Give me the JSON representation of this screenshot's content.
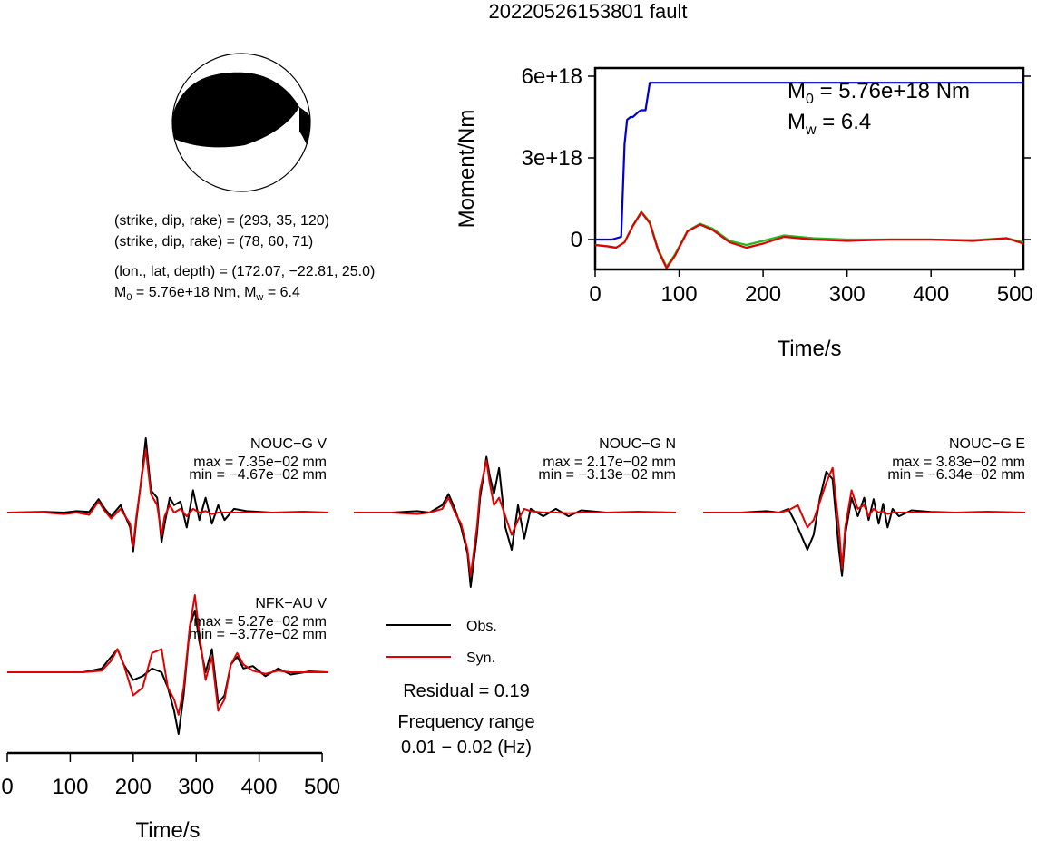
{
  "title": "20220526153801 fault",
  "beachball": {
    "plane1": "(strike, dip, rake) = (293, 35, 120)",
    "plane2": "(strike, dip, rake) = (78, 60, 71)",
    "location": "(lon., lat, depth) = (172.07, −22.81, 25.0)",
    "moment_prefix": "M",
    "moment_sub": "0",
    "moment_value": " = 5.76e+18 Nm, M",
    "mw_sub": "w",
    "mw_value": " = 6.4"
  },
  "moment_panel": {
    "m0_label": "M",
    "m0_sub": "0",
    "m0_value": " = 5.76e+18 Nm",
    "mw_label": "M",
    "mw_sub": "w",
    "mw_value": " = 6.4"
  },
  "legend": {
    "obs": "Obs.",
    "syn": "Syn.",
    "residual": "Residual = 0.19",
    "freq_title": "Frequency range",
    "freq_value": "0.01 − 0.02 (Hz)"
  },
  "colors": {
    "obs": "#000000",
    "syn": "#e00000",
    "moment": "#0000cc",
    "green": "#22bb22"
  },
  "chart_data": [
    {
      "type": "line",
      "title": "",
      "xlabel": "Time/s",
      "ylabel": "Moment/Nm",
      "xlim": [
        0,
        510
      ],
      "ylim": [
        -1.1e+18,
        6.3e+18
      ],
      "xticks": [
        0,
        100,
        200,
        300,
        400,
        500
      ],
      "yticks": [
        0,
        3e+18,
        6e+18
      ],
      "ytick_labels": [
        "0",
        "3e+18",
        "6e+18"
      ],
      "series": [
        {
          "role": "cumulative_moment",
          "x": [
            0,
            20,
            31,
            35,
            38,
            42,
            45,
            52,
            55,
            60,
            65,
            510
          ],
          "y": [
            0,
            0,
            1e+17,
            3.5e+18,
            4.4e+18,
            4.5e+18,
            4.5e+18,
            4.7e+18,
            4.75e+18,
            4.75e+18,
            5.76e+18,
            5.76e+18
          ]
        },
        {
          "role": "moment_rate_syn",
          "x": [
            0,
            15,
            25,
            35,
            45,
            55,
            65,
            75,
            85,
            95,
            110,
            125,
            140,
            160,
            180,
            200,
            225,
            260,
            300,
            350,
            400,
            450,
            490,
            510
          ],
          "y": [
            -2e+17,
            -2.5e+17,
            -3e+17,
            -1e+17,
            5e+17,
            1e+18,
            6e+17,
            -4e+17,
            -1.05e+18,
            -6e+17,
            3e+17,
            5.5e+17,
            3.5e+17,
            -1e+17,
            -3e+17,
            -1.5e+17,
            1e+17,
            0.0,
            -5e+16,
            0.0,
            0.0,
            -5e+16,
            5e+16,
            -1.5e+17
          ]
        },
        {
          "role": "moment_rate_green",
          "x": [
            0,
            15,
            25,
            35,
            45,
            55,
            65,
            75,
            85,
            95,
            110,
            125,
            140,
            160,
            180,
            200,
            225,
            260,
            300,
            350,
            400,
            450,
            490,
            510
          ],
          "y": [
            -2e+17,
            -2.5e+17,
            -3e+17,
            -1e+17,
            5.2e+17,
            1.02e+18,
            6.5e+17,
            -3.5e+17,
            -1e+18,
            -5.5e+17,
            3.2e+17,
            5.8e+17,
            4e+17,
            -5e+16,
            -2e+17,
            -5e+16,
            1.5e+17,
            5e+16,
            0.0,
            0.0,
            0.0,
            -2e+16,
            5e+16,
            -1e+17
          ]
        }
      ]
    },
    {
      "type": "line",
      "station": "NOUC−G V",
      "max_label": "max = 7.35e−02 mm",
      "min_label": "min = −4.67e−02 mm",
      "amp": [
        7.35,
        -4.67
      ],
      "obs": {
        "t": [
          0,
          60,
          90,
          110,
          130,
          145,
          155,
          165,
          180,
          195,
          200,
          205,
          215,
          220,
          228,
          238,
          245,
          250,
          258,
          265,
          275,
          285,
          295,
          305,
          315,
          325,
          335,
          345,
          360,
          380,
          420,
          470,
          510
        ],
        "y": [
          0,
          0.01,
          0.0,
          0.02,
          0.01,
          0.18,
          0.05,
          -0.05,
          0.1,
          -0.2,
          -0.52,
          -0.1,
          0.6,
          1.0,
          0.3,
          0.2,
          -0.4,
          -0.15,
          0.2,
          0.1,
          0.15,
          -0.2,
          0.3,
          -0.1,
          0.2,
          -0.15,
          0.1,
          -0.1,
          0.05,
          0.02,
          0.0,
          0.01,
          0.0
        ]
      },
      "syn": {
        "t": [
          0,
          60,
          90,
          110,
          130,
          145,
          155,
          165,
          180,
          195,
          200,
          205,
          215,
          220,
          228,
          238,
          245,
          250,
          258,
          265,
          275,
          285,
          295,
          305,
          315,
          325,
          335,
          345,
          360,
          380,
          420,
          470,
          510
        ],
        "y": [
          0,
          0.0,
          -0.02,
          0.0,
          -0.03,
          0.15,
          0.02,
          -0.08,
          0.05,
          -0.15,
          -0.45,
          -0.05,
          0.55,
          0.85,
          0.25,
          0.1,
          -0.3,
          -0.05,
          0.1,
          0.0,
          0.05,
          -0.05,
          0.05,
          0.0,
          0.02,
          -0.02,
          0.0,
          0.0,
          0.0,
          0.0,
          0.0,
          0.0,
          0.0
        ]
      }
    },
    {
      "type": "line",
      "station": "NOUC−G N",
      "max_label": "max = 2.17e−02 mm",
      "min_label": "min = −3.13e−02 mm",
      "amp": [
        2.17,
        -3.13
      ],
      "obs": {
        "t": [
          0,
          60,
          100,
          120,
          140,
          150,
          160,
          170,
          180,
          185,
          195,
          200,
          210,
          215,
          222,
          230,
          240,
          250,
          260,
          270,
          280,
          300,
          320,
          340,
          360,
          400,
          450,
          510
        ],
        "y": [
          0,
          0.0,
          0.02,
          0.0,
          0.1,
          0.25,
          0.05,
          -0.2,
          -0.55,
          -1.0,
          -0.3,
          0.2,
          0.75,
          0.5,
          0.25,
          0.6,
          -0.2,
          -0.5,
          0.1,
          -0.35,
          0.05,
          -0.05,
          0.05,
          -0.05,
          0.03,
          0.0,
          0.01,
          0.0
        ]
      },
      "syn": {
        "t": [
          0,
          60,
          100,
          120,
          140,
          150,
          160,
          170,
          180,
          185,
          195,
          200,
          210,
          215,
          222,
          230,
          240,
          250,
          260,
          270,
          280,
          300,
          320,
          340,
          360,
          400,
          450,
          510
        ],
        "y": [
          0,
          0.0,
          -0.02,
          0.0,
          0.05,
          0.2,
          0.0,
          -0.15,
          -0.5,
          -0.85,
          -0.2,
          0.3,
          0.7,
          0.4,
          0.1,
          0.2,
          -0.05,
          -0.3,
          -0.1,
          0.05,
          0.02,
          0.0,
          0.0,
          -0.01,
          0.0,
          0.0,
          0.0,
          0.0
        ]
      }
    },
    {
      "type": "line",
      "station": "NOUC−G E",
      "max_label": "max = 3.83e−02 mm",
      "min_label": "min = −6.34e−02 mm",
      "amp": [
        3.83,
        -6.34
      ],
      "obs": {
        "t": [
          0,
          60,
          100,
          120,
          135,
          150,
          165,
          175,
          185,
          195,
          205,
          215,
          220,
          225,
          235,
          245,
          255,
          262,
          270,
          278,
          285,
          292,
          300,
          310,
          330,
          360,
          400,
          450,
          510
        ],
        "y": [
          0,
          0.0,
          0.02,
          0.0,
          0.05,
          -0.2,
          -0.5,
          -0.3,
          0.2,
          0.55,
          0.45,
          -0.5,
          -0.85,
          -0.3,
          0.2,
          -0.05,
          0.2,
          -0.1,
          0.18,
          -0.15,
          0.12,
          -0.2,
          0.05,
          -0.05,
          0.03,
          0.01,
          0.0,
          0.01,
          0.0
        ]
      },
      "syn": {
        "t": [
          0,
          60,
          100,
          120,
          135,
          150,
          165,
          175,
          185,
          195,
          205,
          215,
          220,
          225,
          235,
          245,
          255,
          262,
          270,
          278,
          285,
          292,
          300,
          310,
          330,
          360,
          400,
          450,
          510
        ],
        "y": [
          0,
          0.0,
          0.0,
          0.0,
          0.03,
          0.1,
          -0.2,
          -0.1,
          0.15,
          0.4,
          0.6,
          -0.2,
          -0.75,
          -0.2,
          0.3,
          0.05,
          0.1,
          -0.05,
          0.05,
          0.0,
          0.02,
          -0.02,
          0.0,
          0.0,
          0.0,
          0.0,
          0.0,
          0.0,
          0.0
        ]
      }
    },
    {
      "type": "line",
      "station": "NFK−AU V",
      "max_label": "max = 5.27e−02 mm",
      "min_label": "min = −3.77e−02 mm",
      "amp": [
        5.27,
        -3.77
      ],
      "xlabel": "Time/s",
      "xlim": [
        0,
        510
      ],
      "xticks": [
        0,
        100,
        200,
        300,
        400,
        500
      ],
      "obs": {
        "t": [
          0,
          60,
          120,
          150,
          165,
          175,
          185,
          200,
          215,
          230,
          245,
          255,
          265,
          272,
          280,
          290,
          298,
          305,
          315,
          325,
          335,
          345,
          355,
          365,
          375,
          390,
          410,
          430,
          450,
          480,
          510
        ],
        "y": [
          0,
          0.0,
          0.0,
          0.05,
          0.2,
          0.3,
          0.1,
          -0.1,
          -0.05,
          0.05,
          0.0,
          -0.2,
          -0.5,
          -0.8,
          -0.3,
          0.6,
          0.8,
          0.4,
          0.0,
          0.3,
          -0.4,
          -0.3,
          0.1,
          0.2,
          0.05,
          0.08,
          -0.05,
          0.05,
          -0.03,
          0.01,
          0.0
        ]
      },
      "syn": {
        "t": [
          0,
          60,
          120,
          150,
          165,
          175,
          185,
          200,
          215,
          230,
          245,
          255,
          265,
          272,
          280,
          290,
          298,
          305,
          315,
          325,
          335,
          345,
          355,
          365,
          375,
          390,
          410,
          430,
          450,
          480,
          510
        ],
        "y": [
          0,
          0.0,
          0.0,
          0.02,
          0.15,
          0.3,
          0.1,
          -0.3,
          -0.2,
          0.25,
          0.3,
          -0.2,
          -0.35,
          -0.55,
          -0.2,
          0.6,
          1.0,
          0.5,
          -0.1,
          0.2,
          -0.5,
          -0.35,
          0.1,
          0.25,
          0.1,
          0.02,
          -0.02,
          0.02,
          0.0,
          0.0,
          0.0
        ]
      }
    }
  ]
}
